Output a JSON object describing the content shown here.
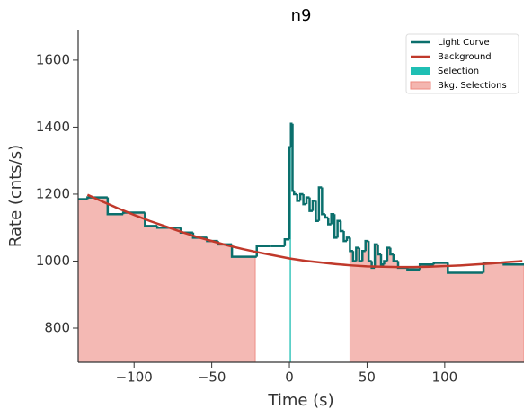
{
  "chart_data": {
    "type": "lightcurve",
    "title": "n9",
    "x_label": "Time (s)",
    "y_label": "Rate (cnts/s)",
    "xlim": [
      -136,
      151
    ],
    "ylim": [
      698,
      1691
    ],
    "xticks": [
      {
        "value": -100,
        "label": "−100"
      },
      {
        "value": -50,
        "label": "−50"
      },
      0,
      50,
      100
    ],
    "yticks": [
      800,
      1000,
      1200,
      1400,
      1600
    ],
    "legend": "upper right",
    "series": [
      {
        "name": "Light Curve",
        "color": "#0a6f6c",
        "bins": [
          -136,
          -130,
          -117,
          -107,
          -93,
          -85,
          -70,
          -62,
          -53,
          -46,
          -37,
          -21,
          -12,
          -3,
          0,
          1,
          2,
          3,
          5,
          7,
          9,
          11,
          13,
          15,
          17,
          19,
          21,
          23,
          25,
          27,
          29,
          31,
          33,
          35,
          37,
          39,
          41,
          43,
          45,
          47,
          49,
          51,
          53,
          55,
          57,
          59,
          61,
          63,
          65,
          67,
          70,
          76,
          84,
          93,
          102,
          113,
          125,
          128,
          138,
          151
        ],
        "values": [
          1185,
          1190,
          1140,
          1145,
          1105,
          1100,
          1085,
          1070,
          1060,
          1050,
          1013,
          1045,
          1045,
          1065,
          1340,
          1410,
          1210,
          1200,
          1180,
          1200,
          1170,
          1190,
          1150,
          1180,
          1120,
          1220,
          1140,
          1130,
          1110,
          1140,
          1070,
          1120,
          1090,
          1060,
          1070,
          1030,
          1000,
          1040,
          1000,
          1030,
          1060,
          1000,
          980,
          1050,
          1020,
          990,
          1000,
          1040,
          1020,
          1000,
          980,
          975,
          990,
          995,
          965,
          965,
          995,
          995,
          990
        ]
      },
      {
        "name": "Background",
        "color": "#c0392b",
        "x": [
          -130,
          -120,
          -110,
          -100,
          -90,
          -80,
          -70,
          -60,
          -50,
          -40,
          -30,
          -20,
          -10,
          0,
          10,
          20,
          30,
          40,
          50,
          60,
          70,
          80,
          90,
          100,
          110,
          120,
          130,
          140,
          150
        ],
        "values": [
          1198,
          1177,
          1157,
          1138,
          1120,
          1104,
          1088,
          1073,
          1060,
          1047,
          1036,
          1026,
          1017,
          1008,
          1001,
          996,
          991,
          987,
          984,
          983,
          982,
          982,
          983,
          985,
          987,
          990,
          993,
          997,
          1000
        ]
      }
    ],
    "selections": [
      {
        "name": "Selection",
        "color": "#1fbfb4",
        "ranges": [
          [
            0.2,
            1.0
          ]
        ]
      },
      {
        "name": "Bkg. Selections",
        "color": "#f4b6b0",
        "ranges": [
          [
            -136,
            -22
          ],
          [
            39,
            151
          ]
        ]
      }
    ]
  }
}
